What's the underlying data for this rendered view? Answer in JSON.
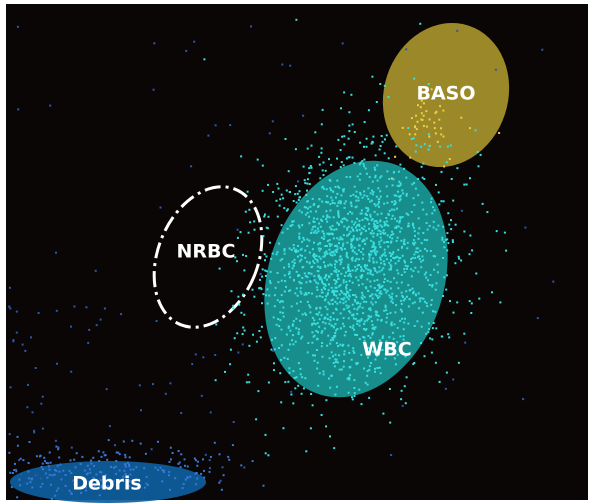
{
  "chart_data": {
    "type": "scatter",
    "title": "",
    "xlabel": "",
    "ylabel": "",
    "background_color": "#0a0606",
    "regions": [
      {
        "label": "BASO",
        "fill_color": "#a8942c",
        "outline": "filled"
      },
      {
        "label": "WBC",
        "fill_color": "#1a9a98",
        "outline": "filled"
      },
      {
        "label": "NRBC",
        "fill_color": "none",
        "outline": "white-dashed"
      },
      {
        "label": "Debris",
        "fill_color": "#0e5e9e",
        "outline": "filled"
      }
    ],
    "point_populations": [
      {
        "region": "BASO",
        "color": "#f0d040",
        "density": "sparse"
      },
      {
        "region": "WBC",
        "color": "#38e0e0",
        "density": "dense"
      },
      {
        "region": "Debris",
        "color": "#3a78d8",
        "density": "medium"
      },
      {
        "region": "background",
        "color": "#2c58b0",
        "density": "sparse"
      }
    ]
  }
}
